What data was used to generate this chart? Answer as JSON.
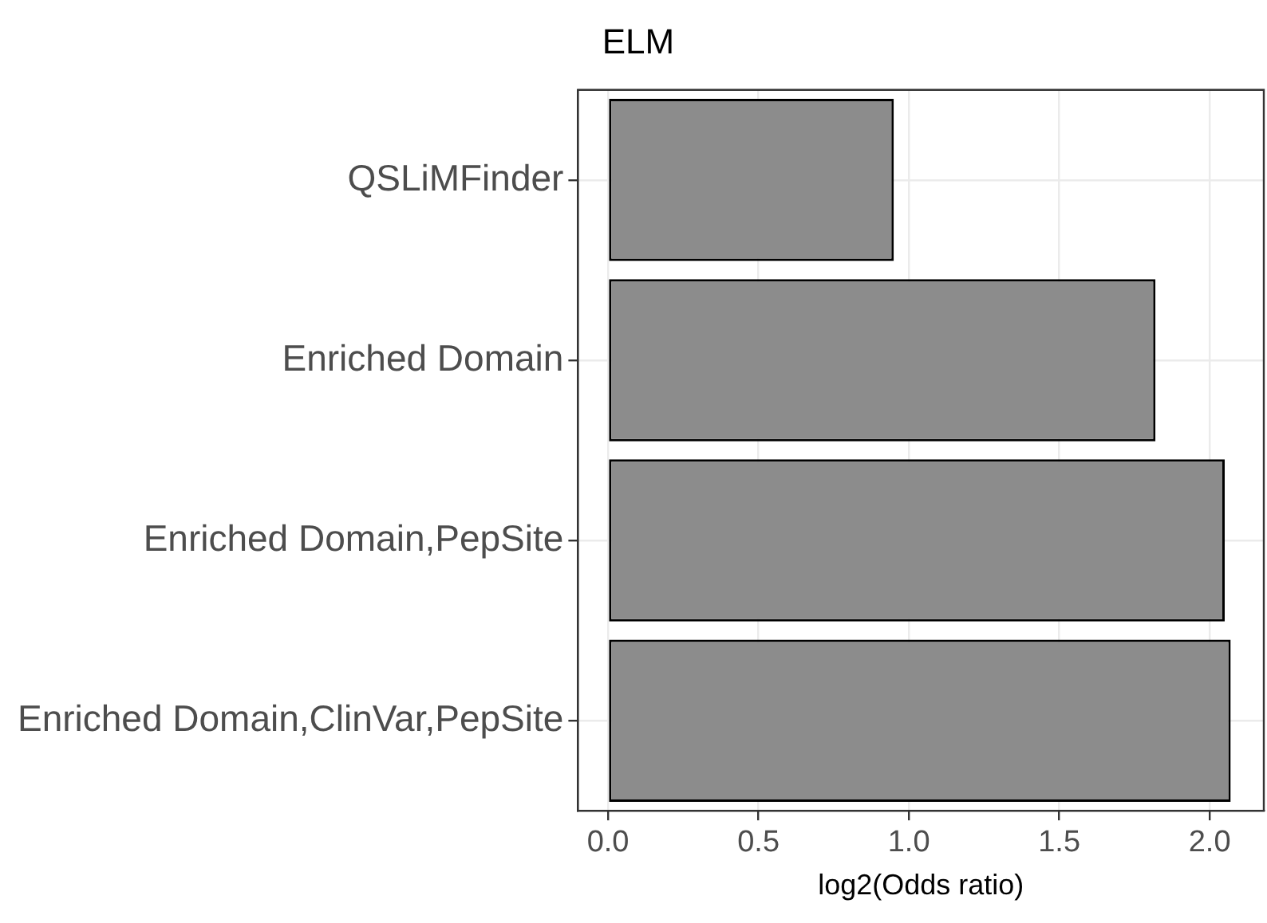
{
  "chart_data": {
    "type": "bar",
    "orientation": "horizontal",
    "title": "ELM",
    "xlabel": "log2(Odds ratio)",
    "categories": [
      "QSLiMFinder",
      "Enriched Domain",
      "Enriched Domain,PepSite",
      "Enriched Domain,ClinVar,PepSite"
    ],
    "values": [
      0.95,
      1.82,
      2.05,
      2.07
    ],
    "color": "#8c8c8c",
    "xlim": [
      -0.1,
      2.18
    ],
    "xticks": [
      {
        "value": 0,
        "label": "0.0"
      },
      {
        "value": 0.5,
        "label": "0.5"
      },
      {
        "value": 1,
        "label": "1.0"
      },
      {
        "value": 1.5,
        "label": "1.5"
      },
      {
        "value": 2,
        "label": "2.0"
      }
    ],
    "grid": true,
    "legend": false
  }
}
